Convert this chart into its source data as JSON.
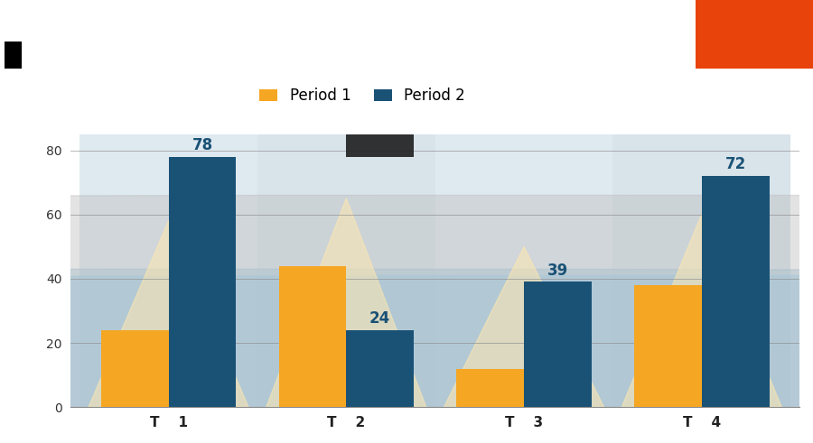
{
  "categories": [
    "T    1",
    "T    2",
    "T    3",
    "T    4"
  ],
  "period1": [
    24,
    44,
    12,
    38
  ],
  "period2": [
    78,
    24,
    39,
    72
  ],
  "color_period1": "#F5A623",
  "color_period2": "#1A5276",
  "ylim": [
    0,
    85
  ],
  "yticks": [
    0,
    20,
    40,
    60,
    80
  ],
  "ytick_labels_shown": [
    "0",
    "20",
    "40",
    "60",
    "80"
  ],
  "legend_period1": "Period 1",
  "legend_period2": "Period 2",
  "bar_width": 0.38,
  "background_color": "#FFFFFF",
  "bg_col_light": "#BDD5E0",
  "bg_col_medium": "#A8C4D4",
  "label_color_p2": "#1A5276",
  "label_color_p1": "#F5A623",
  "black_rect_color": "#222222",
  "orange_rect_color": "#E8430A",
  "tri_color": "#FFE8B0",
  "circle_color_left": "#B8D0DE",
  "circle_color_center": "#C8C8C8"
}
